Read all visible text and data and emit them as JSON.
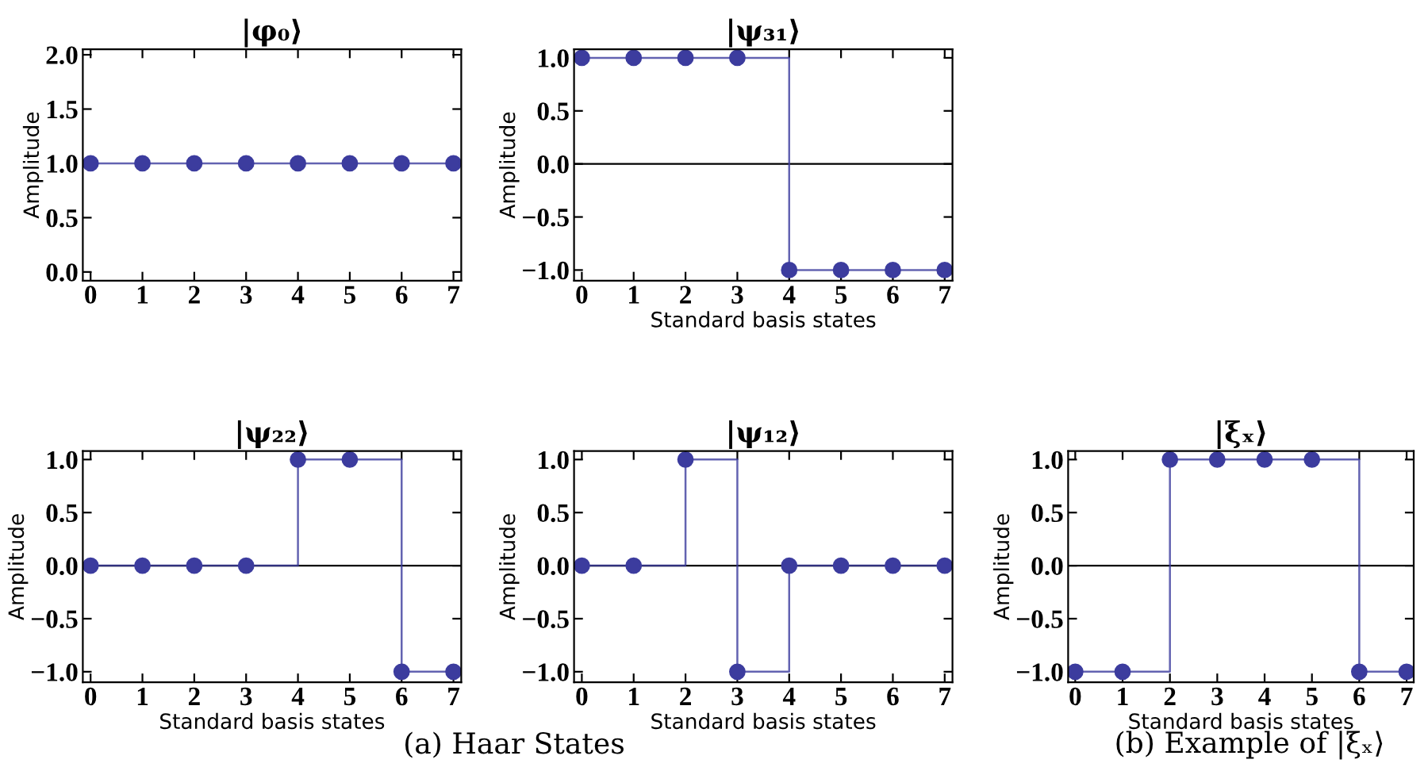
{
  "chart_data": [
    {
      "type": "step",
      "title": "|φ₀⟩",
      "ylabel": "Amplitude",
      "x": [
        0,
        1,
        2,
        3,
        4,
        5,
        6,
        7
      ],
      "xlim": [
        -0.15,
        7.15
      ],
      "xticks": [
        0,
        1,
        2,
        3,
        4,
        5,
        6,
        7
      ],
      "ylim": [
        -0.08,
        2.05
      ],
      "yticks": [
        {
          "value": 0,
          "label": "0.0"
        },
        {
          "value": 0.5,
          "label": "0.5"
        },
        {
          "value": 1,
          "label": "1.0"
        },
        {
          "value": 1.5,
          "label": "1.5"
        },
        {
          "value": 2,
          "label": "2.0"
        }
      ],
      "marker": "circle",
      "grid": false,
      "series": [
        {
          "color": "#3c3c9e",
          "values": [
            1,
            1,
            1,
            1,
            1,
            1,
            1,
            1
          ]
        }
      ]
    },
    {
      "type": "step",
      "title": "|ψ₃₁⟩",
      "xlabel": "Standard basis states",
      "ylabel": "Amplitude",
      "x": [
        0,
        1,
        2,
        3,
        4,
        5,
        6,
        7
      ],
      "xlim": [
        -0.15,
        7.15
      ],
      "xticks": [
        0,
        1,
        2,
        3,
        4,
        5,
        6,
        7
      ],
      "ylim": [
        -1.1,
        1.08
      ],
      "yticks": [
        {
          "value": -1,
          "label": "−1.0"
        },
        {
          "value": -0.5,
          "label": "−0.5"
        },
        {
          "value": 0,
          "label": "0.0"
        },
        {
          "value": 0.5,
          "label": "0.5"
        },
        {
          "value": 1,
          "label": "1.0"
        }
      ],
      "marker": "circle",
      "grid": false,
      "ref_lines": [
        {
          "axis": "y",
          "value": 0,
          "color": "#000000"
        }
      ],
      "series": [
        {
          "color": "#3c3c9e",
          "values": [
            1,
            1,
            1,
            1,
            -1,
            -1,
            -1,
            -1
          ]
        }
      ]
    },
    {
      "type": "step",
      "title": "|ψ₂₂⟩",
      "xlabel": "Standard basis states",
      "ylabel": "Amplitude",
      "x": [
        0,
        1,
        2,
        3,
        4,
        5,
        6,
        7
      ],
      "xlim": [
        -0.15,
        7.15
      ],
      "xticks": [
        0,
        1,
        2,
        3,
        4,
        5,
        6,
        7
      ],
      "ylim": [
        -1.1,
        1.08
      ],
      "yticks": [
        {
          "value": -1,
          "label": "−1.0"
        },
        {
          "value": -0.5,
          "label": "−0.5"
        },
        {
          "value": 0,
          "label": "0.0"
        },
        {
          "value": 0.5,
          "label": "0.5"
        },
        {
          "value": 1,
          "label": "1.0"
        }
      ],
      "marker": "circle",
      "grid": false,
      "ref_lines": [
        {
          "axis": "y",
          "value": 0,
          "color": "#000000"
        }
      ],
      "series": [
        {
          "color": "#3c3c9e",
          "values": [
            0,
            0,
            0,
            0,
            1,
            1,
            -1,
            -1
          ]
        }
      ]
    },
    {
      "type": "step",
      "title": "|ψ₁₂⟩",
      "xlabel": "Standard basis states",
      "ylabel": "Amplitude",
      "x": [
        0,
        1,
        2,
        3,
        4,
        5,
        6,
        7
      ],
      "xlim": [
        -0.15,
        7.15
      ],
      "xticks": [
        0,
        1,
        2,
        3,
        4,
        5,
        6,
        7
      ],
      "ylim": [
        -1.1,
        1.08
      ],
      "yticks": [
        {
          "value": -1,
          "label": "−1.0"
        },
        {
          "value": -0.5,
          "label": "−0.5"
        },
        {
          "value": 0,
          "label": "0.0"
        },
        {
          "value": 0.5,
          "label": "0.5"
        },
        {
          "value": 1,
          "label": "1.0"
        }
      ],
      "marker": "circle",
      "grid": false,
      "ref_lines": [
        {
          "axis": "y",
          "value": 0,
          "color": "#000000"
        }
      ],
      "annotations": [
        "(a) Haar States"
      ],
      "series": [
        {
          "color": "#3c3c9e",
          "values": [
            0,
            0,
            1,
            -1,
            0,
            0,
            0,
            0
          ]
        }
      ]
    },
    {
      "type": "step",
      "title": "|ξₓ⟩",
      "xlabel": "Standard basis states",
      "ylabel": "Amplitude",
      "x": [
        0,
        1,
        2,
        3,
        4,
        5,
        6,
        7
      ],
      "xlim": [
        -0.15,
        7.15
      ],
      "xticks": [
        0,
        1,
        2,
        3,
        4,
        5,
        6,
        7
      ],
      "ylim": [
        -1.1,
        1.08
      ],
      "yticks": [
        {
          "value": -1,
          "label": "−1.0"
        },
        {
          "value": -0.5,
          "label": "−0.5"
        },
        {
          "value": 0,
          "label": "0.0"
        },
        {
          "value": 0.5,
          "label": "0.5"
        },
        {
          "value": 1,
          "label": "1.0"
        }
      ],
      "marker": "circle",
      "grid": false,
      "ref_lines": [
        {
          "axis": "y",
          "value": 0,
          "color": "#000000"
        }
      ],
      "annotations": [
        "(b) Example of |ξₓ⟩"
      ],
      "series": [
        {
          "color": "#3c3c9e",
          "values": [
            -1,
            -1,
            1,
            1,
            1,
            1,
            -1,
            -1
          ]
        }
      ]
    }
  ]
}
